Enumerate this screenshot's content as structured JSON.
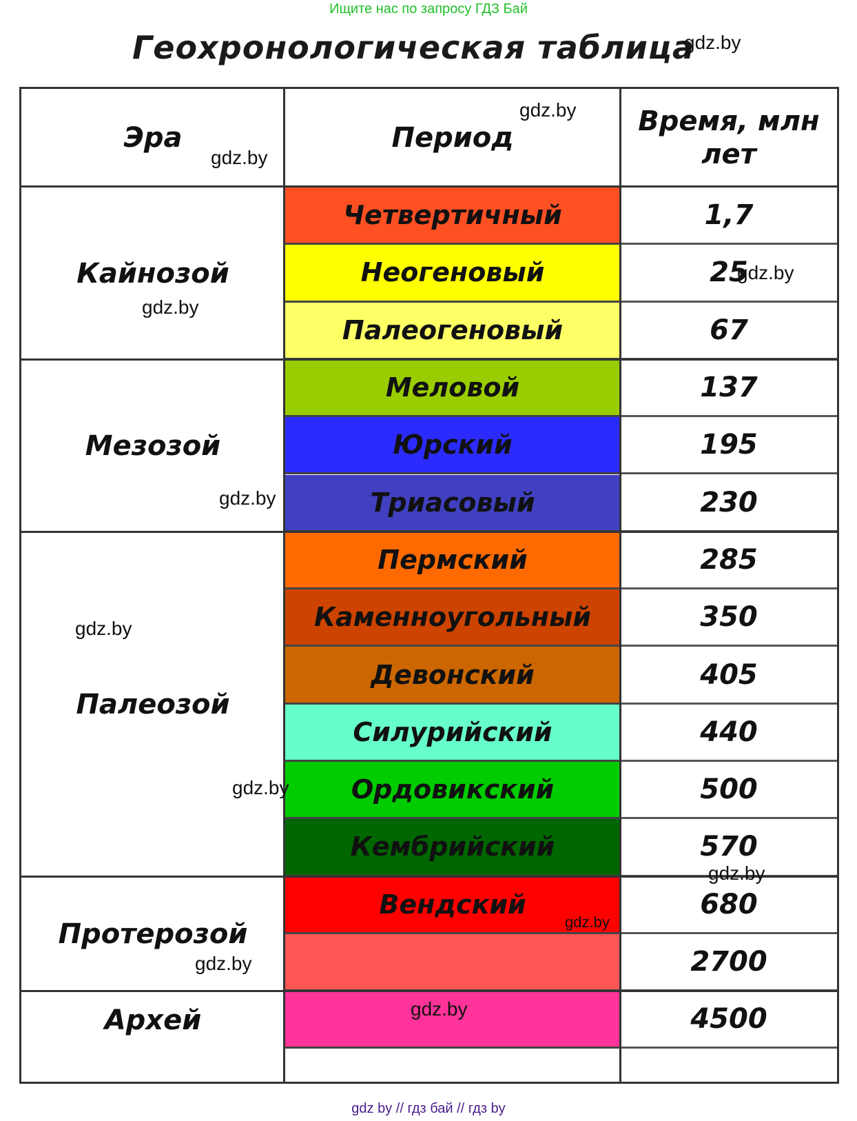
{
  "banner": "Ищите нас по запросу ГДЗ Бай",
  "title": "Геохронологическая таблица",
  "watermark": "gdz.by",
  "footer": "gdz by  //  гдз бай  //  гдз by",
  "headers": {
    "era": "Эра",
    "period": "Период",
    "time": "Время, млн  лет"
  },
  "eras": [
    {
      "name": "Кайнозой",
      "rows": 3
    },
    {
      "name": "Мезозой",
      "rows": 3
    },
    {
      "name": "Палеозой",
      "rows": 6
    },
    {
      "name": "Протерозой",
      "rows": 2
    },
    {
      "name": "Архей",
      "rows": 1
    }
  ],
  "periods": [
    {
      "name": "Четвертичный",
      "time": "1,7",
      "color": "#ff5024"
    },
    {
      "name": "Неогеновый",
      "time": "25",
      "color": "#ffff00"
    },
    {
      "name": "Палеогеновый",
      "time": "67",
      "color": "#ffff66"
    },
    {
      "name": "Меловой",
      "time": "137",
      "color": "#9acd00"
    },
    {
      "name": "Юрский",
      "time": "195",
      "color": "#2b2bff"
    },
    {
      "name": "Триасовый",
      "time": "230",
      "color": "#4040c0"
    },
    {
      "name": "Пермский",
      "time": "285",
      "color": "#ff6a00"
    },
    {
      "name": "Каменноугольный",
      "time": "350",
      "color": "#cc4400"
    },
    {
      "name": "Девонский",
      "time": "405",
      "color": "#cc6600"
    },
    {
      "name": "Силурийский",
      "time": "440",
      "color": "#66ffcc"
    },
    {
      "name": "Ордовикский",
      "time": "500",
      "color": "#00cc00"
    },
    {
      "name": "Кембрийский",
      "time": "570",
      "color": "#006600"
    },
    {
      "name": "Вендский",
      "time": "680",
      "color": "#ff0000"
    },
    {
      "name": "",
      "time": "2700",
      "color": "#ff5555"
    },
    {
      "name": "",
      "time": "4500",
      "color": "#ff3399"
    }
  ]
}
